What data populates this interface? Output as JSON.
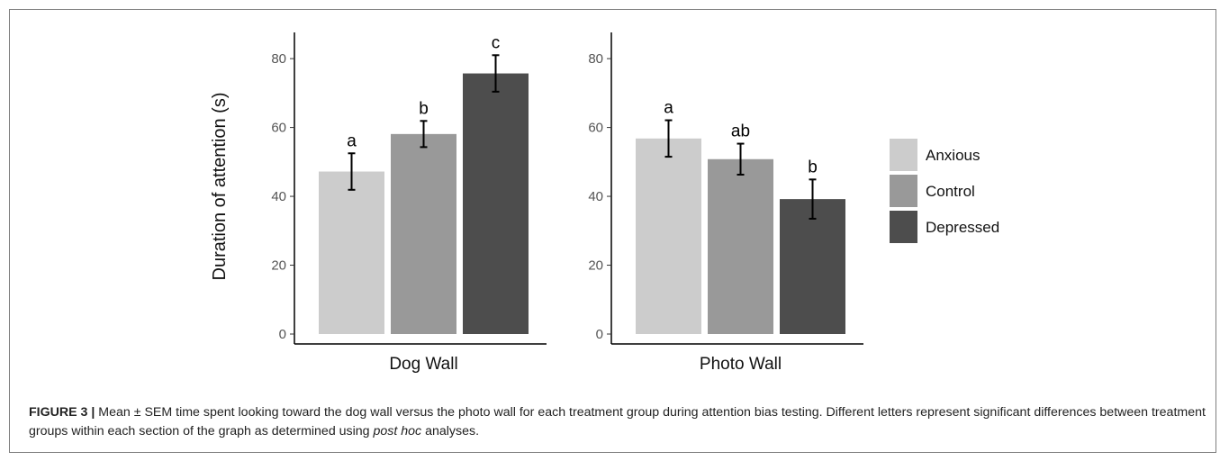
{
  "chart_data": {
    "type": "bar",
    "ylabel": "Duration of attention (s)",
    "ylim": [
      0,
      85
    ],
    "yticks": [
      "0",
      "20",
      "40",
      "60",
      "80"
    ],
    "grid": false,
    "legend_position": "right",
    "series": [
      {
        "name": "Anxious",
        "color": "#cccccc"
      },
      {
        "name": "Control",
        "color": "#999999"
      },
      {
        "name": "Depressed",
        "color": "#4d4d4d"
      }
    ],
    "panels": [
      {
        "xlabel": "Dog Wall",
        "values": [
          47.2,
          58.1,
          75.7
        ],
        "errors": [
          5.3,
          3.8,
          5.3
        ],
        "letters": [
          "a",
          "b",
          "c"
        ]
      },
      {
        "xlabel": "Photo Wall",
        "values": [
          56.8,
          50.8,
          39.2
        ],
        "errors": [
          5.3,
          4.5,
          5.7
        ],
        "letters": [
          "a",
          "ab",
          "b"
        ]
      }
    ]
  },
  "caption": {
    "label": "FIGURE 3 |",
    "text_1": " Mean ± SEM time spent looking toward the dog wall versus the photo wall for each treatment group during attention bias testing. Different letters represent significant differences between treatment groups within each section of the graph as determined using ",
    "text_italic": "post hoc",
    "text_2": " analyses."
  }
}
